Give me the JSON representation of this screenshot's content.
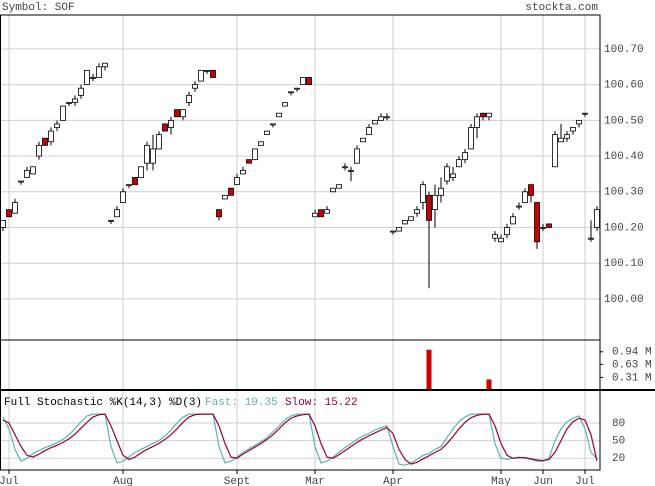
{
  "symbol": "Symbol: SOF",
  "site": "stockta.com",
  "chart_data": [
    {
      "type": "candlestick",
      "up_color": "#ffffff",
      "down_color": "#cc0000",
      "grid": true,
      "categories": [
        null,
        "Jul",
        null,
        null,
        null,
        null,
        null,
        null,
        null,
        null,
        null,
        null,
        null,
        null,
        null,
        null,
        null,
        null,
        null,
        null,
        "Aug",
        null,
        null,
        null,
        null,
        null,
        null,
        null,
        null,
        null,
        null,
        null,
        null,
        null,
        null,
        null,
        null,
        null,
        null,
        "Sept",
        null,
        null,
        null,
        null,
        null,
        null,
        null,
        null,
        null,
        null,
        null,
        null,
        "Mar",
        null,
        null,
        null,
        null,
        null,
        null,
        null,
        null,
        null,
        null,
        null,
        null,
        "Apr",
        null,
        null,
        null,
        null,
        null,
        null,
        null,
        null,
        null,
        null,
        null,
        null,
        null,
        null,
        null,
        null,
        null,
        "May",
        null,
        null,
        null,
        null,
        null,
        null,
        "Jun",
        null,
        null,
        null,
        null,
        null,
        null,
        "Jul",
        null,
        null
      ],
      "ylim": [
        99.885,
        100.795
      ],
      "yticks": [
        {
          "value": 100.0,
          "label": "100.00"
        },
        {
          "value": 100.1,
          "label": "100.10"
        },
        {
          "value": 100.2,
          "label": "100.20"
        },
        {
          "value": 100.3,
          "label": "100.30"
        },
        {
          "value": 100.4,
          "label": "100.40"
        },
        {
          "value": 100.5,
          "label": "100.50"
        },
        {
          "value": 100.6,
          "label": "100.60"
        },
        {
          "value": 100.7,
          "label": "100.70"
        }
      ],
      "ohlc": [
        [
          100.2,
          100.22,
          100.19,
          100.22
        ],
        [
          100.25,
          100.25,
          100.23,
          100.23
        ],
        [
          100.24,
          100.28,
          100.24,
          100.27
        ],
        [
          100.33,
          100.33,
          100.32,
          100.33
        ],
        [
          100.34,
          100.37,
          100.34,
          100.36
        ],
        [
          100.35,
          100.37,
          100.35,
          100.37
        ],
        [
          100.4,
          100.44,
          100.39,
          100.43
        ],
        [
          100.45,
          100.45,
          100.43,
          100.43
        ],
        [
          100.44,
          100.48,
          100.43,
          100.47
        ],
        [
          100.48,
          100.5,
          100.47,
          100.49
        ],
        [
          100.5,
          100.54,
          100.5,
          100.54
        ],
        [
          100.55,
          100.55,
          100.54,
          100.55
        ],
        [
          100.55,
          100.57,
          100.54,
          100.56
        ],
        [
          100.57,
          100.6,
          100.56,
          100.59
        ],
        [
          100.6,
          100.64,
          100.6,
          100.64
        ],
        [
          100.62,
          100.63,
          100.61,
          100.62
        ],
        [
          100.62,
          100.66,
          100.62,
          100.65
        ],
        [
          100.65,
          100.66,
          100.64,
          100.66
        ],
        [
          100.22,
          100.22,
          100.21,
          100.22
        ],
        [
          100.23,
          100.26,
          100.23,
          100.25
        ],
        [
          100.27,
          100.31,
          100.27,
          100.3
        ],
        [
          100.32,
          100.32,
          100.31,
          100.32
        ],
        [
          100.34,
          100.34,
          100.32,
          100.32
        ],
        [
          100.34,
          100.37,
          100.34,
          100.37
        ],
        [
          100.38,
          100.44,
          100.36,
          100.43
        ],
        [
          100.38,
          100.46,
          100.36,
          100.42
        ],
        [
          100.42,
          100.47,
          100.42,
          100.46
        ],
        [
          100.49,
          100.49,
          100.47,
          100.47
        ],
        [
          100.48,
          100.51,
          100.46,
          100.5
        ],
        [
          100.53,
          100.53,
          100.51,
          100.51
        ],
        [
          100.51,
          100.53,
          100.5,
          100.53
        ],
        [
          100.55,
          100.58,
          100.54,
          100.57
        ],
        [
          100.59,
          100.61,
          100.58,
          100.6
        ],
        [
          100.61,
          100.64,
          100.61,
          100.64
        ],
        [
          100.64,
          100.64,
          100.63,
          100.64
        ],
        [
          100.64,
          100.64,
          100.62,
          100.62
        ],
        [
          100.25,
          100.25,
          100.22,
          100.23
        ],
        [
          100.28,
          100.29,
          100.28,
          100.29
        ],
        [
          100.31,
          100.31,
          100.29,
          100.29
        ],
        [
          100.32,
          100.35,
          100.32,
          100.34
        ],
        [
          100.35,
          100.37,
          100.35,
          100.36
        ],
        [
          100.39,
          100.39,
          100.38,
          100.38
        ],
        [
          100.39,
          100.42,
          100.39,
          100.42
        ],
        [
          100.43,
          100.44,
          100.43,
          100.44
        ],
        [
          100.46,
          100.47,
          100.46,
          100.47
        ],
        [
          100.49,
          100.49,
          100.48,
          100.49
        ],
        [
          100.51,
          100.52,
          100.51,
          100.52
        ],
        [
          100.54,
          100.55,
          100.54,
          100.55
        ],
        [
          100.58,
          100.58,
          100.57,
          100.58
        ],
        [
          100.59,
          100.59,
          100.58,
          100.59
        ],
        [
          100.6,
          100.62,
          100.6,
          100.62
        ],
        [
          100.62,
          100.62,
          100.6,
          100.6
        ],
        [
          100.23,
          100.25,
          100.23,
          100.24
        ],
        [
          100.25,
          100.25,
          100.23,
          100.23
        ],
        [
          100.24,
          100.26,
          100.24,
          100.25
        ],
        [
          100.3,
          100.31,
          100.3,
          100.31
        ],
        [
          100.31,
          100.32,
          100.31,
          100.32
        ],
        [
          100.37,
          100.38,
          100.36,
          100.37
        ],
        [
          100.36,
          100.37,
          100.33,
          100.36
        ],
        [
          100.38,
          100.43,
          100.38,
          100.42
        ],
        [
          100.44,
          100.45,
          100.44,
          100.45
        ],
        [
          100.46,
          100.49,
          100.46,
          100.48
        ],
        [
          100.49,
          100.5,
          100.49,
          100.5
        ],
        [
          100.5,
          100.52,
          100.5,
          100.51
        ],
        [
          100.51,
          100.52,
          100.5,
          100.51
        ],
        [
          100.19,
          100.19,
          100.18,
          100.19
        ],
        [
          100.19,
          100.2,
          100.19,
          100.2
        ],
        [
          100.21,
          100.22,
          100.21,
          100.22
        ],
        [
          100.22,
          100.23,
          100.22,
          100.23
        ],
        [
          100.24,
          100.26,
          100.23,
          100.25
        ],
        [
          100.27,
          100.33,
          100.25,
          100.32
        ],
        [
          100.29,
          100.3,
          100.03,
          100.22
        ],
        [
          100.25,
          100.32,
          100.2,
          100.29
        ],
        [
          100.29,
          100.34,
          100.27,
          100.31
        ],
        [
          100.33,
          100.38,
          100.32,
          100.37
        ],
        [
          100.34,
          100.37,
          100.33,
          100.35
        ],
        [
          100.37,
          100.4,
          100.37,
          100.39
        ],
        [
          100.39,
          100.42,
          100.38,
          100.41
        ],
        [
          100.42,
          100.49,
          100.42,
          100.48
        ],
        [
          100.48,
          100.52,
          100.45,
          100.51
        ],
        [
          100.52,
          100.52,
          100.5,
          100.51
        ],
        [
          100.51,
          100.52,
          100.5,
          100.52
        ],
        [
          100.17,
          100.19,
          100.16,
          100.18
        ],
        [
          100.16,
          100.18,
          100.16,
          100.17
        ],
        [
          100.18,
          100.21,
          100.17,
          100.2
        ],
        [
          100.21,
          100.24,
          100.21,
          100.23
        ],
        [
          100.26,
          100.27,
          100.25,
          100.26
        ],
        [
          100.27,
          100.31,
          100.27,
          100.3
        ],
        [
          100.32,
          100.32,
          100.27,
          100.29
        ],
        [
          100.27,
          100.27,
          100.14,
          100.16
        ],
        [
          100.2,
          100.21,
          100.19,
          100.2
        ],
        [
          100.21,
          100.21,
          100.2,
          100.2
        ],
        [
          100.37,
          100.47,
          100.37,
          100.46
        ],
        [
          100.44,
          100.49,
          100.44,
          100.45
        ],
        [
          100.45,
          100.47,
          100.44,
          100.46
        ],
        [
          100.47,
          100.48,
          100.46,
          100.48
        ],
        [
          100.49,
          100.5,
          100.48,
          100.5
        ],
        [
          100.52,
          100.52,
          100.51,
          100.52
        ],
        [
          100.17,
          100.22,
          100.16,
          100.17
        ],
        [
          100.2,
          100.26,
          100.19,
          100.25
        ]
      ]
    },
    {
      "type": "bar",
      "color": "#cc0000",
      "ylim": [
        0,
        1.23
      ],
      "yticks": [
        {
          "value": 0.31,
          "label": "0.31 M"
        },
        {
          "value": 0.63,
          "label": "0.63 M"
        },
        {
          "value": 0.94,
          "label": "0.94 M"
        }
      ],
      "values": [
        0,
        0,
        0,
        0,
        0,
        0,
        0,
        0,
        0,
        0,
        0,
        0,
        0,
        0,
        0,
        0,
        0,
        0,
        0,
        0,
        0,
        0,
        0,
        0,
        0,
        0,
        0,
        0,
        0,
        0,
        0,
        0,
        0,
        0,
        0,
        0,
        0,
        0,
        0,
        0,
        0,
        0,
        0,
        0,
        0,
        0,
        0,
        0,
        0,
        0,
        0,
        0,
        0,
        0,
        0,
        0,
        0,
        0,
        0,
        0,
        0,
        0,
        0,
        0,
        0,
        0,
        0,
        0,
        0,
        0,
        0,
        0.99,
        0,
        0,
        0,
        0,
        0,
        0,
        0,
        0,
        0,
        0.26,
        0,
        0,
        0,
        0,
        0,
        0,
        0,
        0,
        0,
        0,
        0,
        0,
        0,
        0,
        0,
        0,
        0,
        0
      ]
    },
    {
      "type": "line",
      "title": "Full Stochastic %K(14,3) %D(3)",
      "ylim": [
        0,
        136
      ],
      "yticks": [
        20,
        50,
        80
      ],
      "series": [
        {
          "name": "Fast: 19.35",
          "color": "#5fb0b0",
          "values": [
            90,
            70,
            35,
            15,
            20,
            28,
            33,
            38,
            42,
            46,
            52,
            60,
            70,
            82,
            92,
            95,
            95,
            95,
            40,
            12,
            15,
            22,
            30,
            35,
            40,
            45,
            50,
            58,
            68,
            80,
            90,
            95,
            95,
            95,
            95,
            95,
            40,
            12,
            15,
            22,
            30,
            36,
            42,
            48,
            55,
            65,
            75,
            85,
            92,
            95,
            95,
            95,
            40,
            12,
            15,
            22,
            30,
            38,
            45,
            52,
            58,
            62,
            68,
            72,
            75,
            40,
            10,
            8,
            12,
            18,
            25,
            28,
            35,
            40,
            55,
            70,
            82,
            90,
            95,
            95,
            95,
            95,
            45,
            20,
            18,
            20,
            22,
            20,
            18,
            15,
            15,
            20,
            50,
            70,
            82,
            88,
            92,
            70,
            30,
            19.35
          ]
        },
        {
          "name": "Slow: 15.22",
          "color": "#990033",
          "values": [
            85,
            80,
            60,
            40,
            25,
            22,
            27,
            33,
            38,
            42,
            47,
            53,
            61,
            71,
            81,
            90,
            94,
            95,
            75,
            50,
            25,
            18,
            22,
            29,
            35,
            40,
            45,
            52,
            60,
            70,
            81,
            90,
            94,
            95,
            95,
            95,
            75,
            45,
            22,
            20,
            27,
            33,
            39,
            45,
            52,
            60,
            70,
            80,
            88,
            92,
            94,
            95,
            75,
            45,
            22,
            20,
            26,
            33,
            40,
            47,
            53,
            58,
            63,
            68,
            72,
            62,
            35,
            18,
            10,
            13,
            19,
            24,
            30,
            35,
            45,
            57,
            70,
            81,
            89,
            93,
            95,
            95,
            75,
            45,
            25,
            20,
            21,
            21,
            19,
            17,
            16,
            18,
            30,
            50,
            70,
            82,
            88,
            85,
            60,
            15.22
          ]
        }
      ]
    }
  ]
}
